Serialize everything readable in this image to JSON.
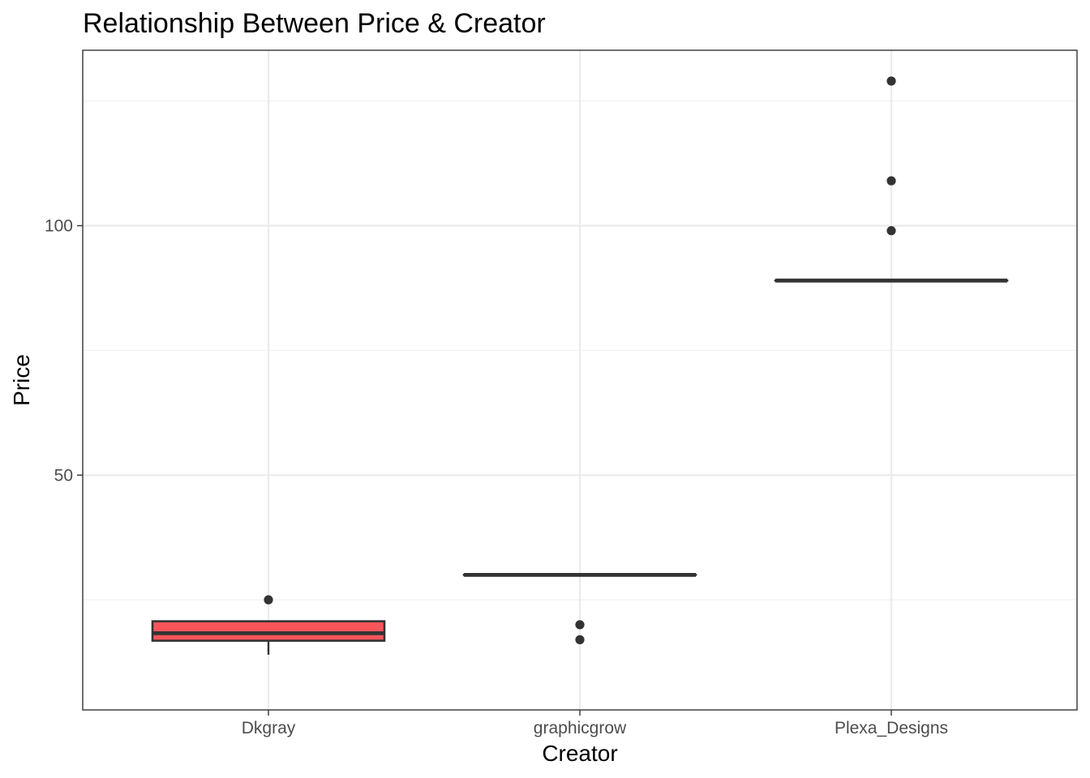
{
  "chart_data": {
    "type": "boxplot",
    "title": "Relationship Between Price & Creator",
    "xlabel": "Creator",
    "ylabel": "Price",
    "categories": [
      "Dkgray",
      "graphicgrow",
      "Plexa_Designs"
    ],
    "ylim": [
      16,
      130
    ],
    "yticks": [
      50,
      100
    ],
    "grid": true,
    "legend": "none",
    "boxes": [
      {
        "category": "Dkgray",
        "lower_whisker": 14.0,
        "q1": 16.8,
        "median": 18.3,
        "q3": 20.7,
        "upper_whisker": 20.7,
        "outliers": [
          25
        ],
        "fill": "#f8555a"
      },
      {
        "category": "graphicgrow",
        "lower_whisker": 30,
        "q1": 30,
        "median": 30,
        "q3": 30,
        "upper_whisker": 30,
        "outliers": [
          17,
          20
        ],
        "fill": "#00ba38"
      },
      {
        "category": "Plexa_Designs",
        "lower_whisker": 89,
        "q1": 89,
        "median": 89,
        "q3": 89,
        "upper_whisker": 89,
        "outliers": [
          99,
          109,
          129
        ],
        "fill": "#619cff"
      }
    ]
  },
  "colors": {
    "panel_border": "#333333",
    "grid_major": "#ebebeb",
    "grid_minor": "#f2f2f2",
    "box_outline": "#333333",
    "tick_text": "#4d4d4d",
    "title_text": "#000000"
  }
}
